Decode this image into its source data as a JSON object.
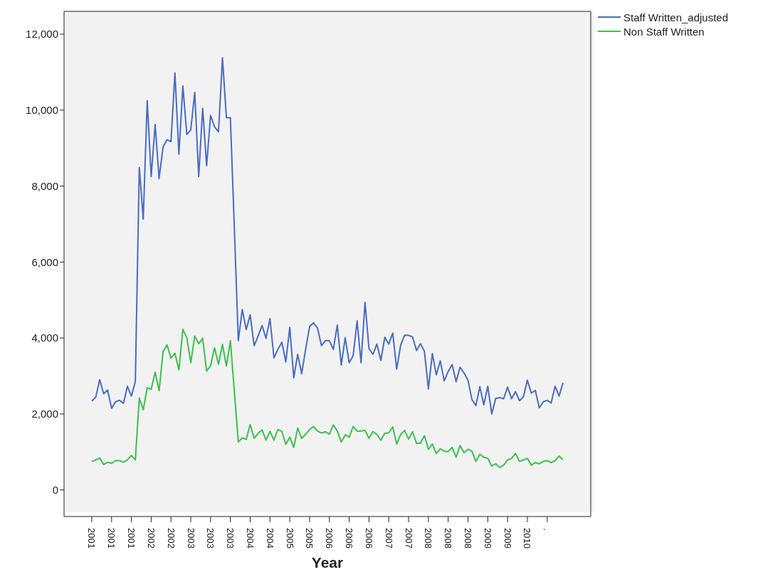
{
  "chart_data": {
    "type": "line",
    "xlabel": "Year",
    "categories": [
      "2001",
      null,
      null,
      null,
      null,
      "2001",
      null,
      null,
      null,
      null,
      "2001",
      null,
      null,
      null,
      null,
      "2002",
      null,
      null,
      null,
      null,
      "2002",
      null,
      null,
      null,
      null,
      "2003",
      null,
      null,
      null,
      null,
      "2003",
      null,
      null,
      null,
      null,
      "2003",
      null,
      null,
      null,
      null,
      "2004",
      null,
      null,
      null,
      null,
      "2004",
      null,
      null,
      null,
      null,
      "2005",
      null,
      null,
      null,
      null,
      "2005",
      null,
      null,
      null,
      null,
      "2006",
      null,
      null,
      null,
      null,
      "2006",
      null,
      null,
      null,
      null,
      "2006",
      null,
      null,
      null,
      null,
      "2007",
      null,
      null,
      null,
      null,
      "2007",
      null,
      null,
      null,
      null,
      "2008",
      null,
      null,
      null,
      null,
      "2008",
      null,
      null,
      null,
      null,
      "2008",
      null,
      null,
      null,
      null,
      "2009",
      null,
      null,
      null,
      null,
      "2009",
      null,
      null,
      null,
      null,
      "2010",
      null,
      null,
      null,
      null,
      ".",
      null,
      null,
      null,
      null
    ],
    "series": [
      {
        "name": "Staff Written_adjusted",
        "color": "#4a6cc0",
        "values": [
          2340,
          2440,
          2900,
          2530,
          2630,
          2150,
          2320,
          2360,
          2280,
          2730,
          2470,
          2850,
          8490,
          7130,
          10250,
          8250,
          9620,
          8200,
          9030,
          9220,
          9170,
          10980,
          8840,
          10640,
          9360,
          9480,
          10470,
          8250,
          10050,
          8540,
          9860,
          9560,
          9430,
          11380,
          9800,
          9800,
          6900,
          3930,
          4750,
          4220,
          4610,
          3800,
          4050,
          4330,
          3990,
          4510,
          3480,
          3700,
          3890,
          3370,
          4280,
          2950,
          3570,
          3060,
          3700,
          4300,
          4400,
          4260,
          3800,
          3930,
          3930,
          3700,
          4340,
          3290,
          4010,
          3350,
          3530,
          4450,
          3350,
          4940,
          3720,
          3570,
          3840,
          3410,
          4020,
          3840,
          4130,
          3180,
          3810,
          4070,
          4070,
          4030,
          3670,
          3850,
          3650,
          2660,
          3590,
          3030,
          3400,
          2870,
          3120,
          3300,
          2850,
          3230,
          3080,
          2890,
          2380,
          2220,
          2720,
          2240,
          2730,
          2000,
          2410,
          2430,
          2400,
          2710,
          2400,
          2590,
          2350,
          2450,
          2890,
          2550,
          2620,
          2160,
          2320,
          2360,
          2290,
          2730,
          2470,
          2820
        ]
      },
      {
        "name": "Non Staff Written",
        "color": "#3cbf50",
        "values": [
          750,
          790,
          840,
          670,
          730,
          700,
          770,
          770,
          730,
          790,
          910,
          790,
          2420,
          2110,
          2690,
          2650,
          3100,
          2610,
          3640,
          3820,
          3470,
          3600,
          3160,
          4230,
          4010,
          3350,
          4050,
          3850,
          3990,
          3130,
          3270,
          3740,
          3310,
          3830,
          3260,
          3930,
          2600,
          1260,
          1370,
          1330,
          1720,
          1360,
          1490,
          1580,
          1310,
          1540,
          1310,
          1590,
          1540,
          1200,
          1390,
          1120,
          1630,
          1360,
          1460,
          1590,
          1670,
          1550,
          1500,
          1530,
          1470,
          1710,
          1550,
          1260,
          1450,
          1390,
          1670,
          1550,
          1550,
          1570,
          1360,
          1540,
          1460,
          1310,
          1490,
          1500,
          1660,
          1210,
          1460,
          1570,
          1340,
          1530,
          1230,
          1230,
          1430,
          1070,
          1210,
          960,
          1080,
          1020,
          1010,
          1120,
          860,
          1170,
          980,
          1070,
          1020,
          750,
          940,
          860,
          830,
          630,
          690,
          590,
          650,
          790,
          830,
          960,
          750,
          790,
          830,
          650,
          720,
          690,
          750,
          770,
          720,
          770,
          890,
          800
        ]
      }
    ],
    "ylim": [
      -700,
      12600
    ],
    "yticks": [
      {
        "value": 0,
        "label": "0"
      },
      {
        "value": 2000,
        "label": "2,000"
      },
      {
        "value": 4000,
        "label": "4,000"
      },
      {
        "value": 6000,
        "label": "6,000"
      },
      {
        "value": 8000,
        "label": "8,000"
      },
      {
        "value": 10000,
        "label": "10,000"
      },
      {
        "value": 12000,
        "label": "12,000"
      }
    ],
    "legend": "top right",
    "marker": "none",
    "line_style": "solid"
  }
}
